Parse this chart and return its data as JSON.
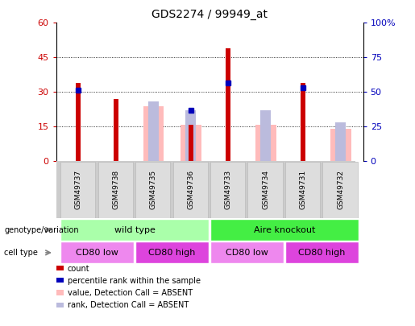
{
  "title": "GDS2274 / 99949_at",
  "samples": [
    "GSM49737",
    "GSM49738",
    "GSM49735",
    "GSM49736",
    "GSM49733",
    "GSM49734",
    "GSM49731",
    "GSM49732"
  ],
  "count_values": [
    34,
    27,
    0,
    16,
    49,
    0,
    34,
    0
  ],
  "rank_values": [
    31,
    0,
    0,
    22,
    34,
    0,
    32,
    0
  ],
  "absent_value_bars": [
    0,
    0,
    24,
    16,
    0,
    16,
    0,
    14
  ],
  "absent_rank_bars": [
    0,
    0,
    26,
    22,
    0,
    22,
    0,
    17
  ],
  "count_color": "#cc0000",
  "rank_color": "#0000bb",
  "absent_value_color": "#ffbbbb",
  "absent_rank_color": "#bbbbdd",
  "ylim_left": [
    0,
    60
  ],
  "ylim_right": [
    0,
    100
  ],
  "yticks_left": [
    0,
    15,
    30,
    45,
    60
  ],
  "ytick_labels_left": [
    "0",
    "15",
    "30",
    "45",
    "60"
  ],
  "ytick_labels_right": [
    "0",
    "25",
    "50",
    "75",
    "100%"
  ],
  "bg_color": "#ffffff",
  "geno_groups": [
    {
      "label": "wild type",
      "start": 0,
      "end": 3,
      "color": "#aaffaa"
    },
    {
      "label": "Aire knockout",
      "start": 4,
      "end": 7,
      "color": "#44ee44"
    }
  ],
  "cell_groups": [
    {
      "label": "CD80 low",
      "start": 0,
      "end": 1,
      "color": "#ee88ee"
    },
    {
      "label": "CD80 high",
      "start": 2,
      "end": 3,
      "color": "#dd44dd"
    },
    {
      "label": "CD80 low",
      "start": 4,
      "end": 5,
      "color": "#ee88ee"
    },
    {
      "label": "CD80 high",
      "start": 6,
      "end": 7,
      "color": "#dd44dd"
    }
  ],
  "legend_items": [
    {
      "label": "count",
      "color": "#cc0000"
    },
    {
      "label": "percentile rank within the sample",
      "color": "#0000bb"
    },
    {
      "label": "value, Detection Call = ABSENT",
      "color": "#ffbbbb"
    },
    {
      "label": "rank, Detection Call = ABSENT",
      "color": "#bbbbdd"
    }
  ]
}
